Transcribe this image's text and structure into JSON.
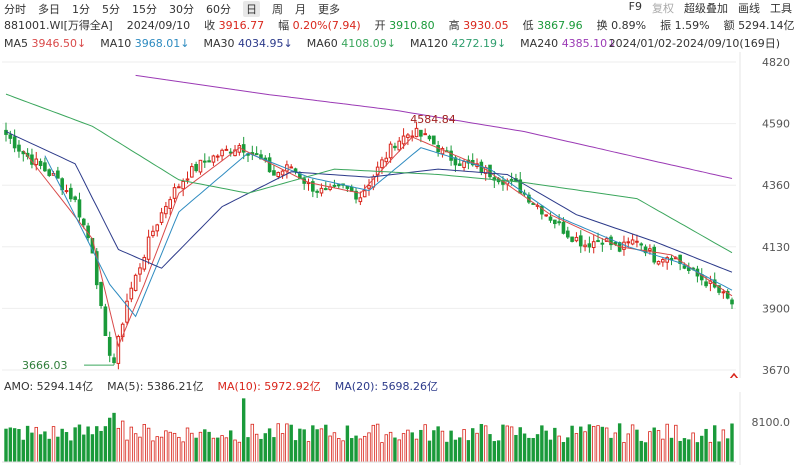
{
  "toolbar": {
    "periods": [
      "分时",
      "多日",
      "1分",
      "5分",
      "15分",
      "30分",
      "60分",
      "日",
      "周",
      "月",
      "更多"
    ],
    "active_period": "日",
    "right": [
      "F9",
      "复权",
      "超级叠加",
      "画线",
      "工具"
    ],
    "right_dim": "复权"
  },
  "quote": {
    "code": "881001.WI[万得全A]",
    "date": "2024/09/10",
    "close_label": "收",
    "close": "3916.77",
    "change_label": "幅",
    "change": "0.20%(7.94)",
    "open_label": "开",
    "open": "3910.80",
    "high_label": "高",
    "high": "3930.05",
    "low_label": "低",
    "low": "3867.96",
    "turnover_label": "换",
    "turnover": "0.89%",
    "amplitude_label": "振",
    "amplitude": "1.59%",
    "amount_label": "额",
    "amount": "5294.14亿"
  },
  "ma_legend": [
    {
      "name": "MA5",
      "value": "3946.50↓",
      "color": "#d94a4a"
    },
    {
      "name": "MA10",
      "value": "3968.01↓",
      "color": "#2e8bc0"
    },
    {
      "name": "MA30",
      "value": "4034.95↓",
      "color": "#2c3a8a"
    },
    {
      "name": "MA60",
      "value": "4108.09↓",
      "color": "#3aa65c"
    },
    {
      "name": "MA120",
      "value": "4272.19↓",
      "color": "#2f9e6e"
    },
    {
      "name": "MA240",
      "value": "4385.10↓",
      "color": "#9b3ab5"
    }
  ],
  "range_label": "2024/01/02-2024/09/10(169日)",
  "volume_legend": [
    {
      "text": "AMO: 5294.14亿",
      "color": "#333333"
    },
    {
      "text": "MA(5): 5386.21亿",
      "color": "#333333"
    },
    {
      "text": "MA(10): 5972.92亿",
      "color": "#d9261c"
    },
    {
      "text": "MA(20): 5698.26亿",
      "color": "#2c3a8a"
    }
  ],
  "colors": {
    "up": "#d9261c",
    "down": "#1a9a3a",
    "grid": "#eeeeee",
    "annotation_arrow": "#d9261c"
  },
  "chart_data": {
    "type": "candlestick",
    "x_range": [
      "2024/01/02",
      "2024/09/10"
    ],
    "trading_days": 169,
    "ylim": [
      3670,
      4820
    ],
    "y_ticks": [
      3670,
      3900,
      4130,
      4360,
      4590,
      4820
    ],
    "annotations": [
      {
        "text": "4584.84",
        "label": "period-high"
      },
      {
        "text": "3666.03",
        "label": "period-low"
      }
    ],
    "close_path": [
      [
        0,
        4550
      ],
      [
        4,
        4480
      ],
      [
        8,
        4430
      ],
      [
        12,
        4380
      ],
      [
        16,
        4300
      ],
      [
        20,
        4120
      ],
      [
        23,
        3780
      ],
      [
        25,
        3700
      ],
      [
        28,
        3930
      ],
      [
        31,
        4060
      ],
      [
        34,
        4190
      ],
      [
        38,
        4320
      ],
      [
        42,
        4400
      ],
      [
        46,
        4450
      ],
      [
        50,
        4480
      ],
      [
        54,
        4510
      ],
      [
        58,
        4470
      ],
      [
        62,
        4400
      ],
      [
        66,
        4430
      ],
      [
        70,
        4360
      ],
      [
        74,
        4330
      ],
      [
        78,
        4350
      ],
      [
        82,
        4320
      ],
      [
        86,
        4420
      ],
      [
        90,
        4520
      ],
      [
        94,
        4560
      ],
      [
        98,
        4530
      ],
      [
        102,
        4470
      ],
      [
        106,
        4440
      ],
      [
        110,
        4420
      ],
      [
        114,
        4390
      ],
      [
        118,
        4360
      ],
      [
        122,
        4300
      ],
      [
        126,
        4240
      ],
      [
        130,
        4180
      ],
      [
        134,
        4140
      ],
      [
        138,
        4160
      ],
      [
        142,
        4120
      ],
      [
        146,
        4160
      ],
      [
        150,
        4090
      ],
      [
        154,
        4100
      ],
      [
        158,
        4040
      ],
      [
        162,
        4000
      ],
      [
        165,
        3960
      ],
      [
        168,
        3917
      ]
    ],
    "ma_lines": [
      {
        "name": "MA5",
        "path": [
          [
            4,
            4490
          ],
          [
            20,
            4160
          ],
          [
            26,
            3760
          ],
          [
            32,
            3990
          ],
          [
            40,
            4330
          ],
          [
            54,
            4500
          ],
          [
            70,
            4370
          ],
          [
            82,
            4330
          ],
          [
            94,
            4540
          ],
          [
            110,
            4430
          ],
          [
            126,
            4250
          ],
          [
            142,
            4130
          ],
          [
            154,
            4100
          ],
          [
            168,
            3947
          ]
        ]
      },
      {
        "name": "MA10",
        "path": [
          [
            9,
            4470
          ],
          [
            24,
            3990
          ],
          [
            30,
            3870
          ],
          [
            40,
            4260
          ],
          [
            56,
            4480
          ],
          [
            70,
            4390
          ],
          [
            84,
            4340
          ],
          [
            96,
            4500
          ],
          [
            112,
            4420
          ],
          [
            128,
            4240
          ],
          [
            144,
            4130
          ],
          [
            156,
            4070
          ],
          [
            168,
            3968
          ]
        ]
      },
      {
        "name": "MA30",
        "path": [
          [
            0,
            4560
          ],
          [
            16,
            4440
          ],
          [
            26,
            4120
          ],
          [
            36,
            4050
          ],
          [
            50,
            4280
          ],
          [
            66,
            4410
          ],
          [
            84,
            4390
          ],
          [
            100,
            4420
          ],
          [
            116,
            4400
          ],
          [
            132,
            4250
          ],
          [
            150,
            4150
          ],
          [
            168,
            4035
          ]
        ]
      },
      {
        "name": "MA60",
        "path": [
          [
            0,
            4700
          ],
          [
            20,
            4580
          ],
          [
            40,
            4380
          ],
          [
            56,
            4330
          ],
          [
            76,
            4420
          ],
          [
            100,
            4400
          ],
          [
            120,
            4370
          ],
          [
            146,
            4310
          ],
          [
            168,
            4108
          ]
        ]
      },
      {
        "name": "MA240",
        "path": [
          [
            30,
            4770
          ],
          [
            60,
            4700
          ],
          [
            90,
            4640
          ],
          [
            120,
            4560
          ],
          [
            150,
            4450
          ],
          [
            168,
            4385
          ]
        ]
      }
    ],
    "volume_ylim": [
      0,
      12000
    ],
    "volume_tick": "8100.0"
  }
}
